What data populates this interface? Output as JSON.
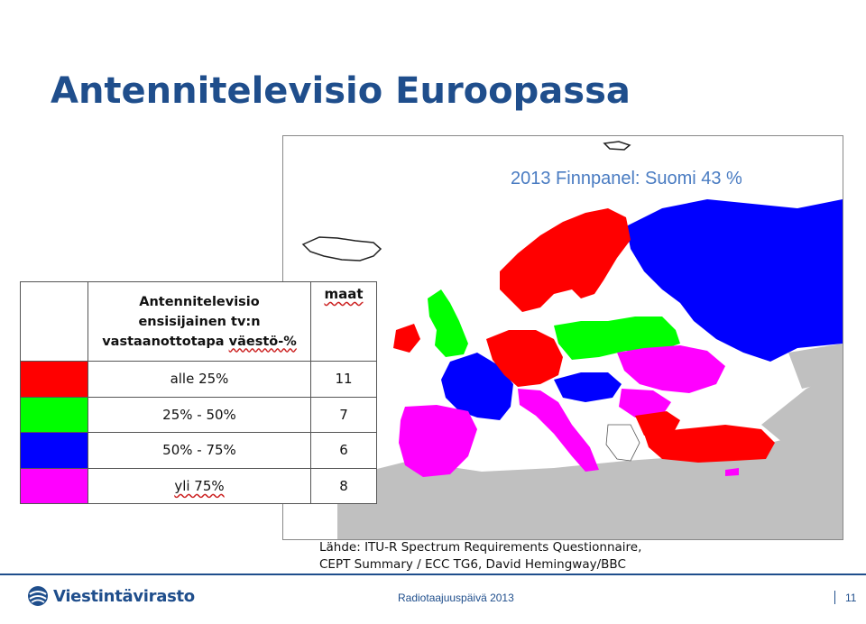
{
  "slide": {
    "title": "Antennitelevisio Euroopassa",
    "finnpanel_note": "2013 Finnpanel: Suomi 43 %"
  },
  "legend": {
    "header_line1": "Antennitelevisio",
    "header_line2": "ensisijainen tv:n",
    "header_line3_pre": "vastaanottotapa ",
    "header_line3_word": "väestö-%",
    "count_header": "maat",
    "rows": [
      {
        "label": "alle 25%",
        "count": "11",
        "color": "#ff0000"
      },
      {
        "label": "25% - 50%",
        "count": "7",
        "color": "#00ff00"
      },
      {
        "label": "50% - 75%",
        "count": "6",
        "color": "#0000ff"
      },
      {
        "label": "yli 75%",
        "count": "8",
        "color": "#ff00ff"
      }
    ]
  },
  "map": {
    "land_color": "#c0c0c0",
    "sea_color": "#ffffff"
  },
  "source": {
    "line1": "Lähde: ITU-R Spectrum Requirements Questionnaire,",
    "line2": "CEPT Summary / ECC TG6, David Hemingway/BBC"
  },
  "footer": {
    "logo_text": "Viestintävirasto",
    "logo_icon": "globe-icon",
    "event": "Radiotaajuuspäivä 2013",
    "page_number": "11",
    "brand_color": "#1f4e8c"
  }
}
